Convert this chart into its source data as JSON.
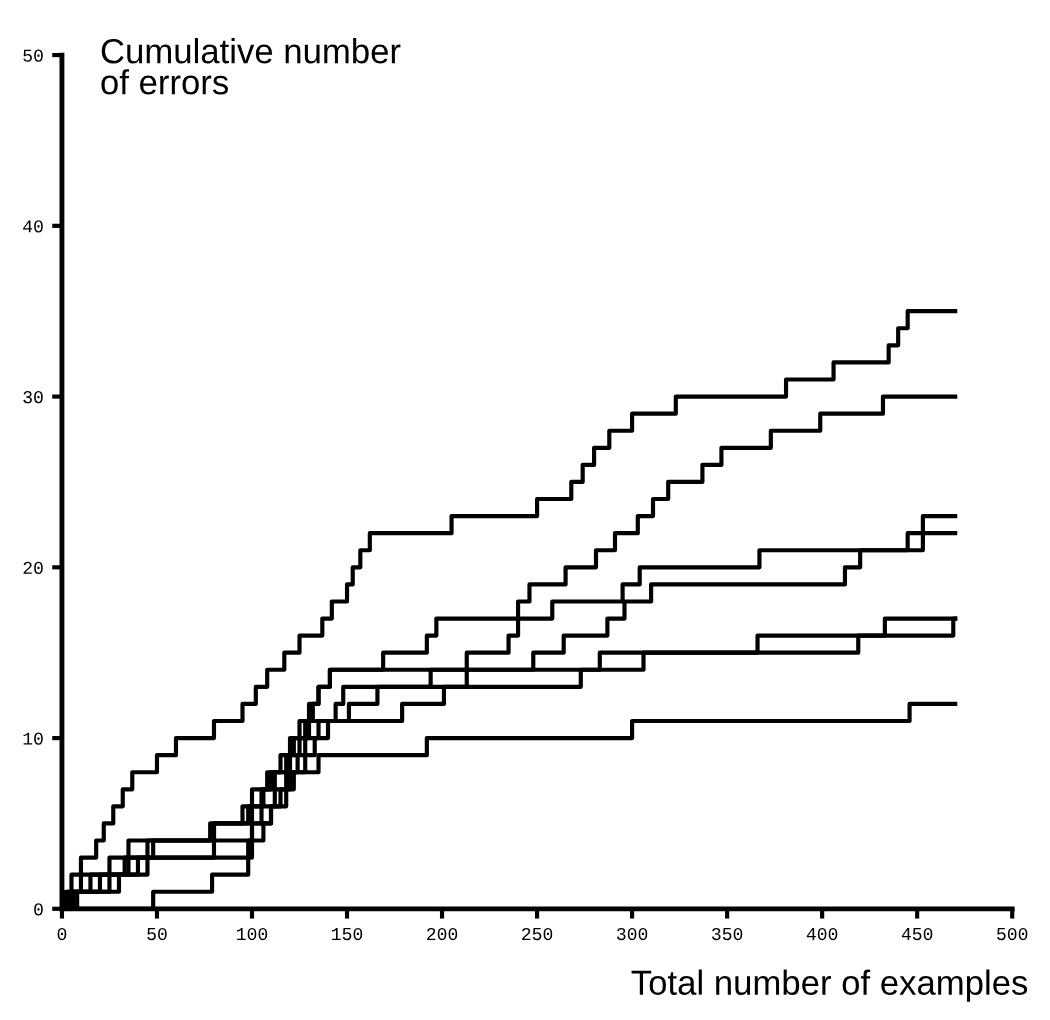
{
  "chart_data": {
    "type": "step",
    "ylabel": "Cumulative number\nof errors",
    "xlabel": "Total number of examples",
    "xlim": [
      0,
      500
    ],
    "xticks": [
      0,
      50,
      100,
      150,
      200,
      250,
      300,
      350,
      400,
      450,
      500
    ],
    "ylim": [
      0,
      50
    ],
    "yticks": [
      0,
      10,
      20,
      30,
      40,
      50
    ],
    "grid": false,
    "legend": false,
    "line_style": "solid",
    "series": [
      {
        "color": "#000000",
        "x": [
          0,
          2,
          5,
          10,
          18,
          22,
          27,
          32,
          37,
          50,
          60,
          80,
          95,
          102,
          108,
          117,
          125,
          137,
          142,
          150,
          153,
          157,
          162,
          205,
          250,
          268,
          274,
          280,
          288,
          300,
          323,
          381,
          406,
          435,
          440,
          445,
          470
        ],
        "values": [
          0,
          1,
          2,
          3,
          4,
          5,
          6,
          7,
          8,
          9,
          10,
          11,
          12,
          13,
          14,
          15,
          16,
          17,
          18,
          19,
          20,
          21,
          22,
          23,
          24,
          25,
          26,
          27,
          28,
          29,
          30,
          31,
          32,
          33,
          34,
          35,
          35
        ]
      },
      {
        "color": "#000000",
        "x": [
          0,
          5,
          15,
          33,
          48,
          78,
          100,
          106,
          112,
          118,
          122,
          128,
          132,
          135,
          141,
          169,
          192,
          197,
          240,
          246,
          265,
          281,
          291,
          303,
          311,
          319,
          337,
          347,
          373,
          399,
          432,
          470
        ],
        "values": [
          0,
          1,
          2,
          3,
          4,
          5,
          6,
          7,
          8,
          9,
          10,
          11,
          12,
          13,
          14,
          15,
          16,
          17,
          18,
          19,
          20,
          21,
          22,
          23,
          24,
          25,
          26,
          27,
          28,
          29,
          30,
          30
        ]
      },
      {
        "color": "#000000",
        "x": [
          0,
          8,
          20,
          35,
          45,
          80,
          98,
          105,
          110,
          120,
          125,
          130,
          151,
          166,
          194,
          213,
          235,
          240,
          258,
          295,
          304,
          367,
          445,
          453,
          470
        ],
        "values": [
          0,
          1,
          2,
          3,
          4,
          5,
          6,
          7,
          8,
          9,
          10,
          11,
          12,
          13,
          14,
          15,
          16,
          17,
          18,
          19,
          20,
          21,
          22,
          23,
          23
        ]
      },
      {
        "color": "#000000",
        "x": [
          0,
          3,
          10,
          25,
          35,
          80,
          95,
          100,
          108,
          115,
          120,
          125,
          130,
          135,
          141,
          248,
          264,
          287,
          296,
          310,
          412,
          420,
          453,
          470
        ],
        "values": [
          0,
          1,
          2,
          3,
          4,
          5,
          6,
          7,
          8,
          9,
          10,
          11,
          12,
          13,
          14,
          15,
          16,
          17,
          18,
          19,
          20,
          21,
          22,
          22
        ]
      },
      {
        "color": "#000000",
        "x": [
          0,
          6,
          30,
          40,
          80,
          100,
          110,
          118,
          122,
          128,
          133,
          140,
          144,
          148,
          273,
          283,
          366,
          433,
          470
        ],
        "values": [
          0,
          1,
          2,
          3,
          4,
          5,
          6,
          7,
          8,
          9,
          10,
          11,
          12,
          13,
          14,
          15,
          16,
          17,
          17
        ]
      },
      {
        "color": "#000000",
        "x": [
          0,
          4,
          25,
          45,
          98,
          100,
          105,
          112,
          118,
          124,
          128,
          135,
          179,
          201,
          213,
          306,
          419,
          469,
          470
        ],
        "values": [
          0,
          1,
          2,
          3,
          4,
          5,
          6,
          7,
          8,
          9,
          10,
          11,
          12,
          13,
          14,
          15,
          16,
          17,
          17
        ]
      },
      {
        "color": "#000000",
        "x": [
          0,
          48,
          79,
          98,
          100,
          106,
          110,
          115,
          120,
          135,
          192,
          300,
          446,
          470
        ],
        "values": [
          0,
          1,
          2,
          3,
          4,
          5,
          6,
          7,
          8,
          9,
          10,
          11,
          12,
          12
        ]
      }
    ]
  }
}
